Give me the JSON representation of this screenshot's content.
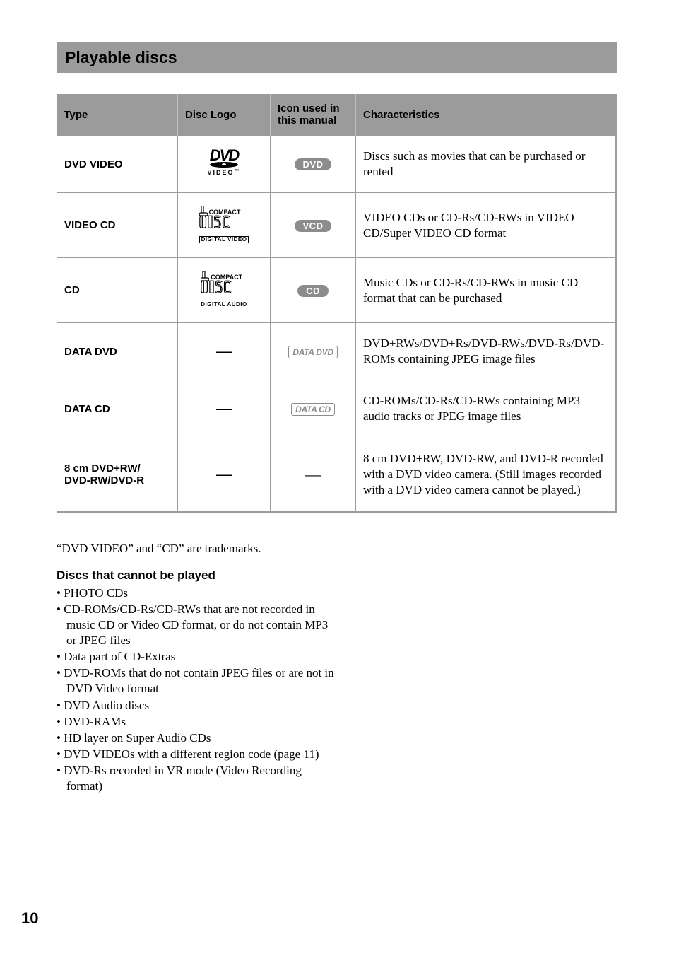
{
  "title": "Playable discs",
  "table": {
    "headers": {
      "type": "Type",
      "logo": "Disc Logo",
      "icon": "Icon used in this manual",
      "char": "Characteristics"
    },
    "rows": [
      {
        "type": "DVD VIDEO",
        "logo_kind": "dvd",
        "logo_sub": "VIDEO",
        "icon_kind": "badge",
        "icon_text": "DVD",
        "char": "Discs such as movies that can be purchased or rented"
      },
      {
        "type": "VIDEO CD",
        "logo_kind": "cd",
        "logo_top": "COMPACT",
        "logo_bottom": "DIGITAL VIDEO",
        "logo_bottom_boxed": true,
        "icon_kind": "badge",
        "icon_text": "VCD",
        "char": "VIDEO CDs or CD-Rs/CD-RWs in VIDEO CD/Super VIDEO CD format"
      },
      {
        "type": "CD",
        "logo_kind": "cd",
        "logo_top": "COMPACT",
        "logo_bottom": "DIGITAL AUDIO",
        "logo_bottom_boxed": false,
        "icon_kind": "badge",
        "icon_text": "CD",
        "char": "Music CDs or CD-Rs/CD-RWs in music CD format that can be purchased"
      },
      {
        "type": "DATA DVD",
        "logo_kind": "dash",
        "icon_kind": "outline",
        "icon_text": "DATA DVD",
        "char": "DVD+RWs/DVD+Rs/DVD-RWs/DVD-Rs/DVD-ROMs containing JPEG image files"
      },
      {
        "type": "DATA CD",
        "logo_kind": "dash",
        "icon_kind": "outline",
        "icon_text": "DATA CD",
        "char": "CD-ROMs/CD-Rs/CD-RWs containing MP3 audio tracks or JPEG image files"
      },
      {
        "type": "8 cm DVD+RW/\nDVD-RW/DVD-R",
        "logo_kind": "dash",
        "icon_kind": "dash",
        "char": "8 cm DVD+RW, DVD-RW, and DVD-R recorded with a DVD video camera. (Still images recorded with a DVD video camera cannot be played.)"
      }
    ]
  },
  "trademark": "“DVD VIDEO” and “CD” are trademarks.",
  "not_played": {
    "heading": "Discs that cannot be played",
    "items": [
      "PHOTO CDs",
      "CD-ROMs/CD-Rs/CD-RWs that are not recorded in music CD or Video CD format, or do not contain MP3 or JPEG files",
      "Data part of CD-Extras",
      "DVD-ROMs that do not contain JPEG files or are not in DVD Video format",
      "DVD Audio discs",
      "DVD-RAMs",
      "HD layer on Super Audio CDs",
      "DVD VIDEOs with a different region code (page 11)",
      "DVD-Rs recorded in VR mode (Video Recording format)"
    ]
  },
  "page_number": "10",
  "styling": {
    "title_bar_bg": "#9b9b9b",
    "table_border": "#9b9b9b",
    "badge_bg": "#8c8c8c",
    "badge_fg": "#ffffff",
    "outline_color": "#8c8c8c",
    "body_font": "Times New Roman",
    "heading_font": "Arial",
    "page_bg": "#ffffff"
  }
}
